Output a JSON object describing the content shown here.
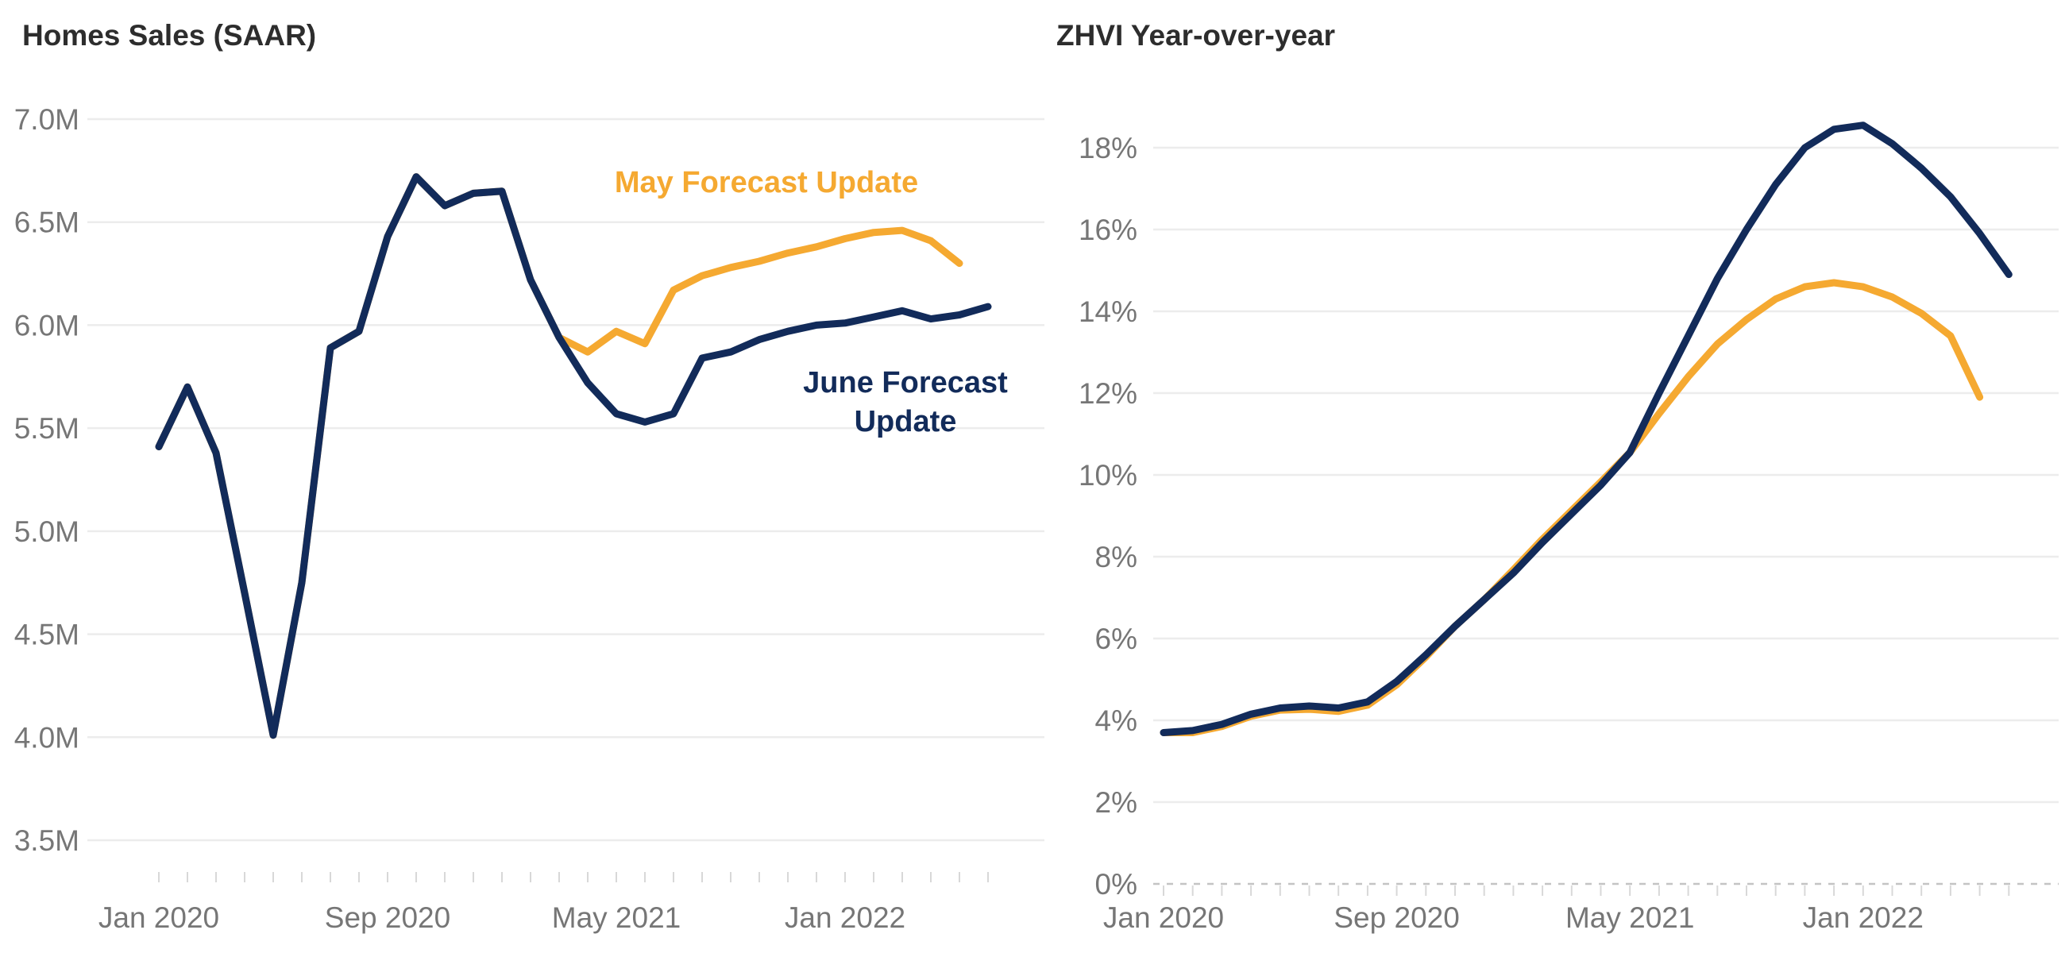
{
  "page": {
    "background_color": "#ffffff",
    "title_color": "#2d2d2d",
    "axis_label_color": "#767676",
    "gridline_color": "#ececec",
    "zero_line_color": "#c4c4c4",
    "tick_color": "#d8d8d8"
  },
  "chart_data": [
    {
      "id": "home-sales",
      "type": "line",
      "title": "Homes Sales (SAAR)",
      "ylabel": "",
      "xlabel": "",
      "ylim": [
        3.5,
        7.0
      ],
      "y_tick_labels": [
        "7.0M",
        "6.5M",
        "6.0M",
        "5.5M",
        "5.0M",
        "4.5M",
        "4.0M",
        "3.5M"
      ],
      "y_tick_values": [
        7.0,
        6.5,
        6.0,
        5.5,
        5.0,
        4.5,
        4.0,
        3.5
      ],
      "x_tick_labels": [
        "Jan 2020",
        "Sep 2020",
        "May 2021",
        "Jan 2022"
      ],
      "x_tick_month_index": [
        0,
        8,
        16,
        24
      ],
      "grid": "horizontal-only",
      "legend_position": "inline-annotations",
      "categories": [
        "Jan 2020",
        "Feb 2020",
        "Mar 2020",
        "Apr 2020",
        "May 2020",
        "Jun 2020",
        "Jul 2020",
        "Aug 2020",
        "Sep 2020",
        "Oct 2020",
        "Nov 2020",
        "Dec 2020",
        "Jan 2021",
        "Feb 2021",
        "Mar 2021",
        "Apr 2021",
        "May 2021",
        "Jun 2021",
        "Jul 2021",
        "Aug 2021",
        "Sep 2021",
        "Oct 2021",
        "Nov 2021",
        "Dec 2021",
        "Jan 2022",
        "Feb 2022",
        "Mar 2022",
        "Apr 2022",
        "May 2022",
        "Jun 2022"
      ],
      "series": [
        {
          "name": "May Forecast Update",
          "color": "#F5A931",
          "values": [
            5.41,
            5.7,
            5.38,
            4.7,
            4.01,
            4.75,
            5.89,
            5.97,
            6.43,
            6.72,
            6.58,
            6.64,
            6.65,
            6.22,
            5.94,
            5.87,
            5.97,
            5.91,
            6.17,
            6.24,
            6.28,
            6.31,
            6.35,
            6.38,
            6.42,
            6.45,
            6.46,
            6.41,
            6.3
          ]
        },
        {
          "name": "June Forecast Update",
          "color": "#122B5A",
          "values": [
            5.41,
            5.7,
            5.38,
            4.7,
            4.01,
            4.75,
            5.89,
            5.97,
            6.43,
            6.72,
            6.58,
            6.64,
            6.65,
            6.22,
            5.94,
            5.72,
            5.57,
            5.53,
            5.57,
            5.84,
            5.87,
            5.93,
            5.97,
            6.0,
            6.01,
            6.04,
            6.07,
            6.03,
            6.05,
            6.09
          ]
        }
      ],
      "annotations": [
        {
          "text": "May Forecast Update",
          "color": "#F5A931"
        },
        {
          "text": "June Forecast Update",
          "color": "#122B5A"
        }
      ]
    },
    {
      "id": "zhvi-yoy",
      "type": "line",
      "title": "ZHVI Year-over-year",
      "ylabel": "",
      "xlabel": "",
      "ylim": [
        0,
        18
      ],
      "y_tick_labels": [
        "18%",
        "16%",
        "14%",
        "12%",
        "10%",
        "8%",
        "6%",
        "4%",
        "2%",
        "0%"
      ],
      "y_tick_values": [
        18,
        16,
        14,
        12,
        10,
        8,
        6,
        4,
        2,
        0
      ],
      "x_tick_labels": [
        "Jan 2020",
        "Sep 2020",
        "May 2021",
        "Jan 2022"
      ],
      "x_tick_month_index": [
        0,
        8,
        16,
        24
      ],
      "grid": "horizontal-only",
      "zero_line_dashed": true,
      "legend_position": "none",
      "categories": [
        "Jan 2020",
        "Feb 2020",
        "Mar 2020",
        "Apr 2020",
        "May 2020",
        "Jun 2020",
        "Jul 2020",
        "Aug 2020",
        "Sep 2020",
        "Oct 2020",
        "Nov 2020",
        "Dec 2020",
        "Jan 2021",
        "Feb 2021",
        "Mar 2021",
        "Apr 2021",
        "May 2021",
        "Jun 2021",
        "Jul 2021",
        "Aug 2021",
        "Sep 2021",
        "Oct 2021",
        "Nov 2021",
        "Dec 2021",
        "Jan 2022",
        "Feb 2022",
        "Mar 2022",
        "Apr 2022",
        "May 2022",
        "Jun 2022"
      ],
      "series": [
        {
          "name": "May Forecast Update",
          "color": "#F5A931",
          "values": [
            3.7,
            3.7,
            3.85,
            4.1,
            4.25,
            4.27,
            4.22,
            4.37,
            4.87,
            5.55,
            6.3,
            6.95,
            7.68,
            8.43,
            9.13,
            9.83,
            10.55,
            11.5,
            12.4,
            13.2,
            13.8,
            14.3,
            14.6,
            14.7,
            14.6,
            14.35,
            13.95,
            13.4,
            11.9
          ]
        },
        {
          "name": "June Forecast Update",
          "color": "#122B5A",
          "values": [
            3.7,
            3.75,
            3.9,
            4.15,
            4.3,
            4.35,
            4.3,
            4.45,
            4.95,
            5.6,
            6.3,
            6.95,
            7.6,
            8.35,
            9.05,
            9.75,
            10.55,
            12.0,
            13.4,
            14.8,
            16.0,
            17.1,
            18.0,
            18.45,
            18.55,
            18.1,
            17.5,
            16.8,
            15.9,
            14.9
          ]
        }
      ],
      "annotations": []
    }
  ]
}
